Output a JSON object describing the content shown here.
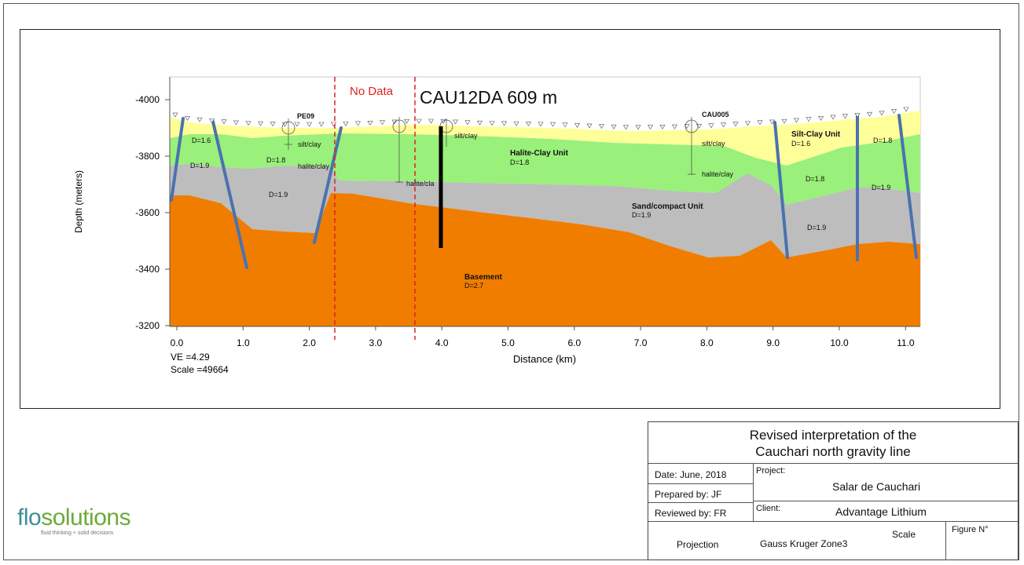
{
  "diagram": {
    "y_axis_label": "Depth (meters)",
    "y_ticks": [
      "-4000",
      "-3800",
      "-3600",
      "-3400",
      "-3200"
    ],
    "x_axis_label": "Distance (km)",
    "x_ticks": [
      "0.0",
      "1.0",
      "2.0",
      "3.0",
      "4.0",
      "5.0",
      "6.0",
      "7.0",
      "8.0",
      "9.0",
      "10.0",
      "11.0"
    ],
    "ve": "VE =4.29",
    "scale": "Scale =49664",
    "no_data": "No Data",
    "well_title": "CAU12DA 609 m",
    "labels": {
      "pe09": "PE09",
      "cau005": "CAU005",
      "silt_clay_1": "silt/clay",
      "halite_clay_1": "halite/clay",
      "halite_clay_2": "halite/cla",
      "silt_clay_2": "silt/clay",
      "silt_clay_3": "silt/clay",
      "halite_clay_3": "halite/clay",
      "halite_clay_unit": "Halite-Clay Unit",
      "halite_clay_unit_d": "D=1.8",
      "sand_unit": "Sand/compact Unit",
      "sand_unit_d": "D=1.9",
      "basement": "Basement",
      "basement_d": "D=2.7",
      "silt_clay_unit": "Silt-Clay Unit",
      "silt_clay_unit_d": "D=1.6",
      "d_l1": "D=1.6",
      "d_l2": "D=1.9",
      "d_l3": "D=1.8",
      "d_l4": "D=1.9",
      "d_r1": "D=1.8",
      "d_r2": "D=1.9",
      "d_r3": "D=1.8",
      "d_r4": "D=1.9"
    }
  },
  "title_block": {
    "title_line1": "Revised interpretation of the",
    "title_line2": "Cauchari north gravity line",
    "date": "Date: June, 2018",
    "prepared": "Prepared by:   JF",
    "reviewed": "Reviewed by:   FR",
    "project_label": "Project:",
    "project_value": "Salar de Cauchari",
    "client_label": "Client:",
    "client_value": "Advantage Lithium",
    "projection_label": "Projection",
    "projection_value": "Gauss Kruger  Zone3",
    "scale_label": "Scale",
    "figure_label": "Figure N°"
  },
  "logo": {
    "name_a": "flo",
    "name_b": "solutions",
    "tagline": "fluid thinking + solid decisions"
  },
  "colors": {
    "silt_clay": "#ffff99",
    "halite_clay": "#99f07a",
    "sand": "#bdbdbd",
    "basement": "#f07d00",
    "fault": "#4a72b0",
    "no_data": "#e02020"
  }
}
